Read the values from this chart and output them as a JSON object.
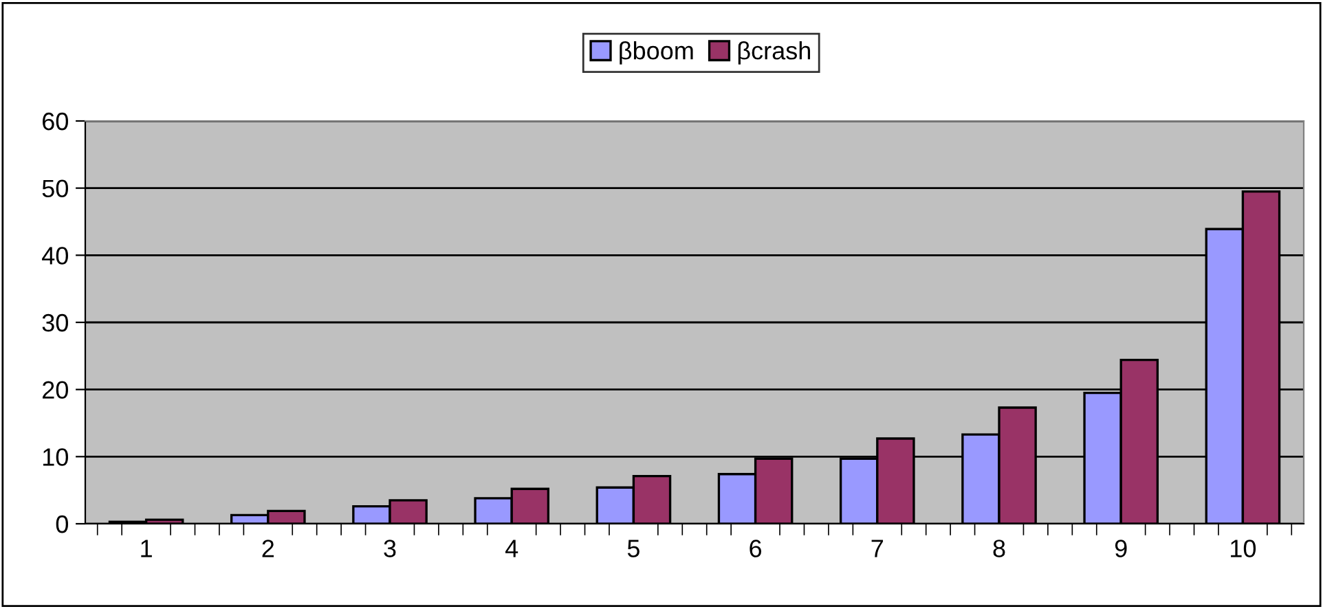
{
  "chart_data": {
    "type": "bar",
    "categories": [
      "1",
      "2",
      "3",
      "4",
      "5",
      "6",
      "7",
      "8",
      "9",
      "10"
    ],
    "series": [
      {
        "name": "βboom",
        "color": "#9999ff",
        "values": [
          0.3,
          1.3,
          2.6,
          3.8,
          5.4,
          7.4,
          9.7,
          13.3,
          19.5,
          43.9
        ]
      },
      {
        "name": "βcrash",
        "color": "#993366",
        "values": [
          0.6,
          1.9,
          3.5,
          5.2,
          7.1,
          9.7,
          12.7,
          17.3,
          24.4,
          49.5
        ]
      }
    ],
    "ylim": [
      0,
      60
    ],
    "yticks": [
      0,
      10,
      20,
      30,
      40,
      50,
      60
    ],
    "grid": "y",
    "legend": "top"
  }
}
